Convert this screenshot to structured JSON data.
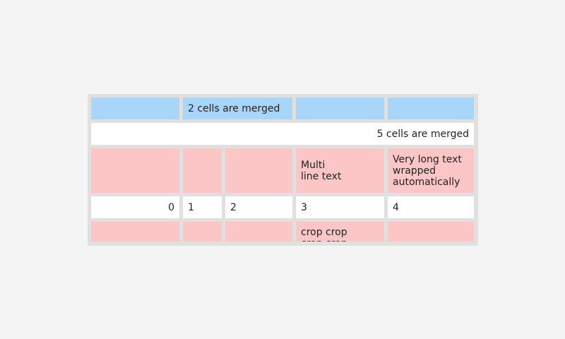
{
  "table": {
    "rows": [
      [
        null,
        "2 cells are merged",
        null,
        null
      ],
      [
        "5 cells are merged"
      ],
      [
        null,
        null,
        null,
        "Multi\nline text",
        "Very long text wrapped automatically"
      ],
      [
        "0",
        "1",
        "2",
        "3",
        "4"
      ],
      [
        null,
        null,
        null,
        "crop crop\ncrop crop",
        null
      ]
    ]
  }
}
